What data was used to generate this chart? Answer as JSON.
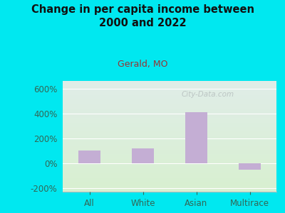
{
  "title": "Change in per capita income between\n2000 and 2022",
  "subtitle": "Gerald, MO",
  "categories": [
    "All",
    "White",
    "Asian",
    "Multirace"
  ],
  "values": [
    100,
    120,
    410,
    -55
  ],
  "bar_color": "#c4aed4",
  "background_outer": "#00e8f0",
  "title_color": "#111111",
  "subtitle_color": "#993333",
  "tick_label_color": "#336655",
  "ylabel_ticks": [
    -200,
    0,
    200,
    400,
    600
  ],
  "ylim": [
    -230,
    660
  ],
  "watermark": "City-Data.com",
  "gradient_top": "#e0ede8",
  "gradient_bottom": "#d8f0d0"
}
